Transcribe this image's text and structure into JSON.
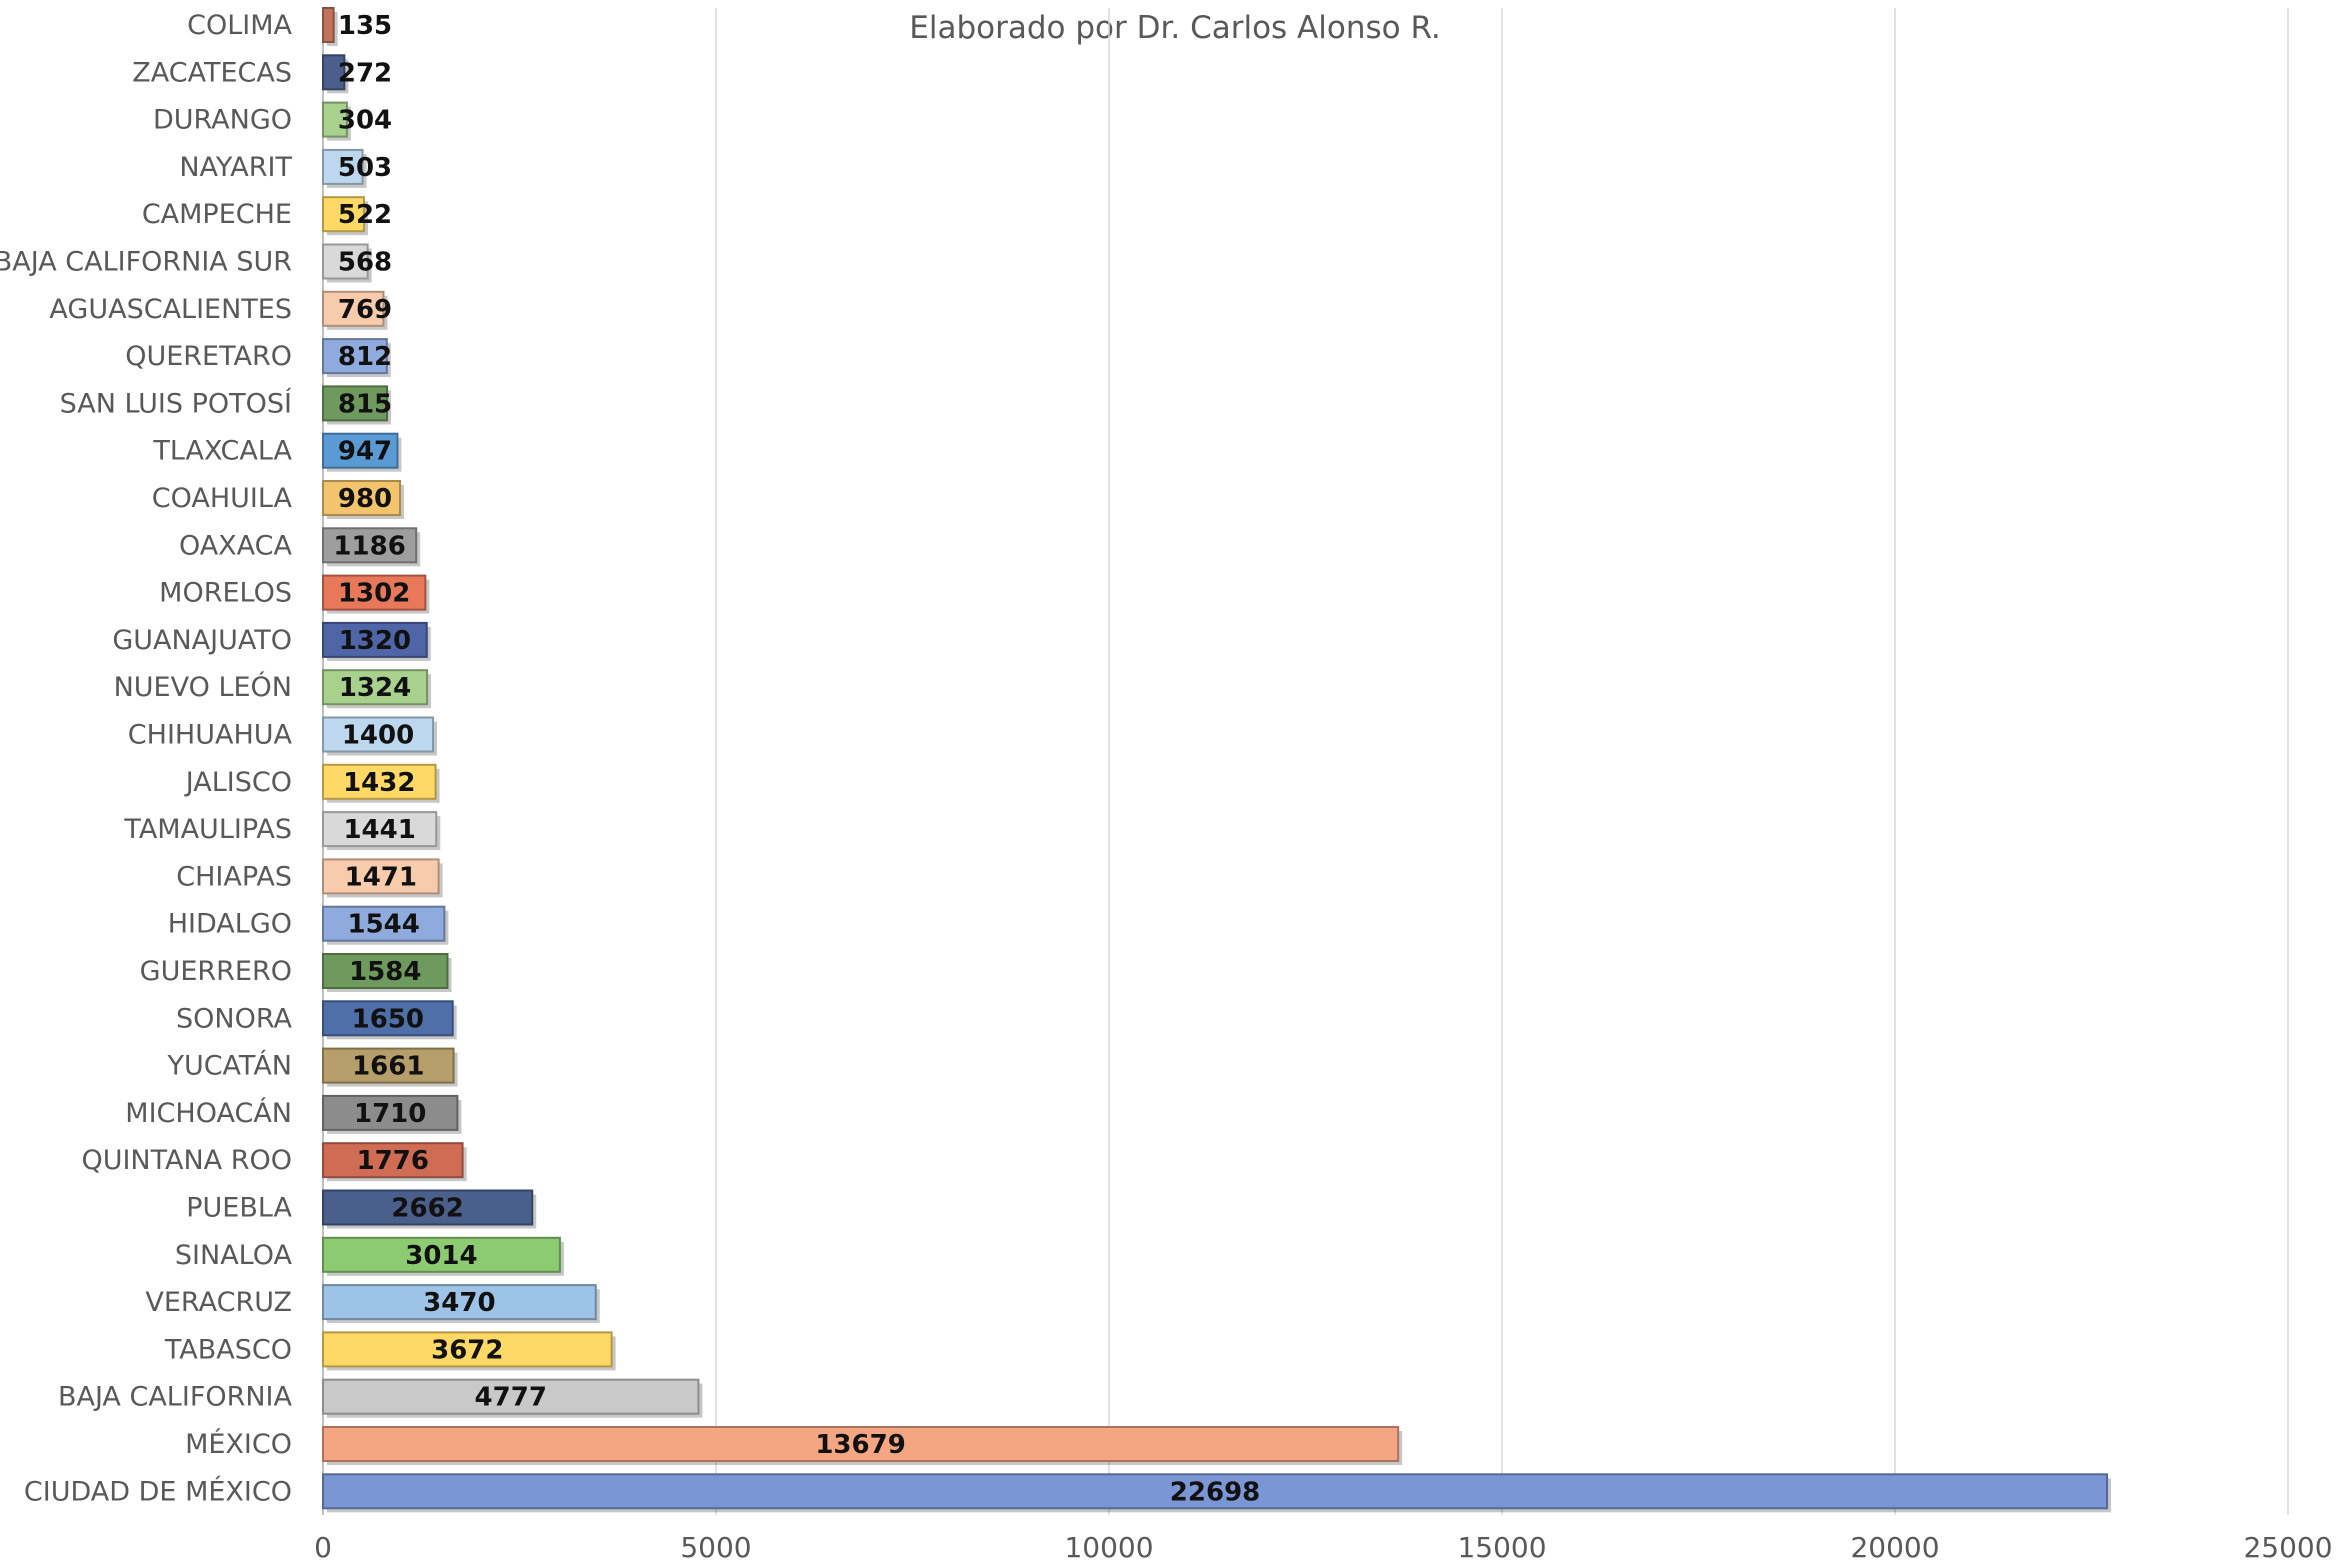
{
  "chart_data": {
    "type": "bar",
    "orientation": "horizontal",
    "title": "",
    "subtitle": "Elaborado por Dr. Carlos Alonso R.",
    "xlabel": "",
    "ylabel": "",
    "xlim": [
      0,
      25000
    ],
    "x_ticks": [
      0,
      5000,
      10000,
      15000,
      20000,
      25000
    ],
    "grid": "vertical",
    "legend": "none",
    "categories": [
      "COLIMA",
      "ZACATECAS",
      "DURANGO",
      "NAYARIT",
      "CAMPECHE",
      "BAJA CALIFORNIA SUR",
      "AGUASCALIENTES",
      "QUERETARO",
      "SAN LUIS POTOSÍ",
      "TLAXCALA",
      "COAHUILA",
      "OAXACA",
      "MORELOS",
      "GUANAJUATO",
      "NUEVO LEÓN",
      "CHIHUAHUA",
      "JALISCO",
      "TAMAULIPAS",
      "CHIAPAS",
      "HIDALGO",
      "GUERRERO",
      "SONORA",
      "YUCATÁN",
      "MICHOACÁN",
      "QUINTANA ROO",
      "PUEBLA",
      "SINALOA",
      "VERACRUZ",
      "TABASCO",
      "BAJA CALIFORNIA",
      "MÉXICO",
      "CIUDAD DE MÉXICO"
    ],
    "values": [
      135,
      272,
      304,
      503,
      522,
      568,
      769,
      812,
      815,
      947,
      980,
      1186,
      1302,
      1320,
      1324,
      1400,
      1432,
      1441,
      1471,
      1544,
      1584,
      1650,
      1661,
      1710,
      1776,
      2662,
      3014,
      3470,
      3672,
      4777,
      13679,
      22698
    ],
    "colors": [
      "#C0735A",
      "#4A5F8C",
      "#A9D18E",
      "#BDD7EE",
      "#FFD966",
      "#D9D9D9",
      "#F8CBAD",
      "#8FAADC",
      "#6E9A5E",
      "#5B9BD5",
      "#F2C46D",
      "#9E9E9E",
      "#E8785A",
      "#4E66A6",
      "#A9D18E",
      "#BDD7EE",
      "#FFD966",
      "#D9D9D9",
      "#F8CBAD",
      "#8FAADC",
      "#6E9A5E",
      "#4F6FA8",
      "#B59E6A",
      "#8C8C8C",
      "#D06C54",
      "#4A5F8C",
      "#8CCB72",
      "#9DC3E6",
      "#FFD966",
      "#C9C9C9",
      "#F4A582",
      "#7B96D4"
    ]
  }
}
